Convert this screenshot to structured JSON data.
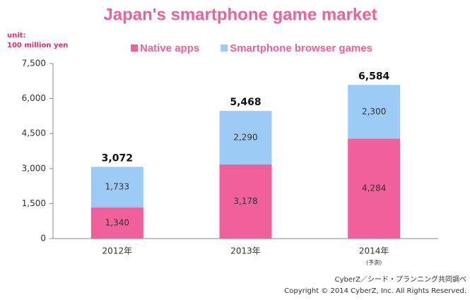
{
  "chart_data": {
    "type": "stacked_bar",
    "title": "Japan's smartphone game market",
    "unit_label": [
      "unit:",
      "100 million yen"
    ],
    "categories": [
      "2012年",
      "2013年",
      "2014年"
    ],
    "forecast_note": "(予測)",
    "series": [
      {
        "name": "Native apps",
        "color": "#f0609a",
        "values": [
          1340,
          3178,
          4284
        ],
        "value_labels": [
          "1,340",
          "3,178",
          "4,284"
        ]
      },
      {
        "name": "Smartphone browser games",
        "color": "#9ccbf5",
        "values": [
          1733,
          2290,
          2300
        ],
        "value_labels": [
          "1,733",
          "2,290",
          "2,300"
        ]
      }
    ],
    "totals": [
      3072,
      5468,
      6584
    ],
    "total_labels": [
      "3,072",
      "5,468",
      "6,584"
    ],
    "ylim": [
      0,
      7500
    ],
    "yticks": [
      0,
      {
        "value": 1500,
        "label": "1,500"
      },
      {
        "value": 3000,
        "label": "3,000"
      },
      {
        "value": 4500,
        "label": "4,500"
      },
      {
        "value": 6000,
        "label": "6,000"
      },
      {
        "value": 7500,
        "label": "7,500"
      }
    ],
    "footer": [
      "CyberZ／シード・プランニング共同調べ",
      "Copyright © 2014 CyberZ, Inc.  All Rights Reserved."
    ]
  }
}
